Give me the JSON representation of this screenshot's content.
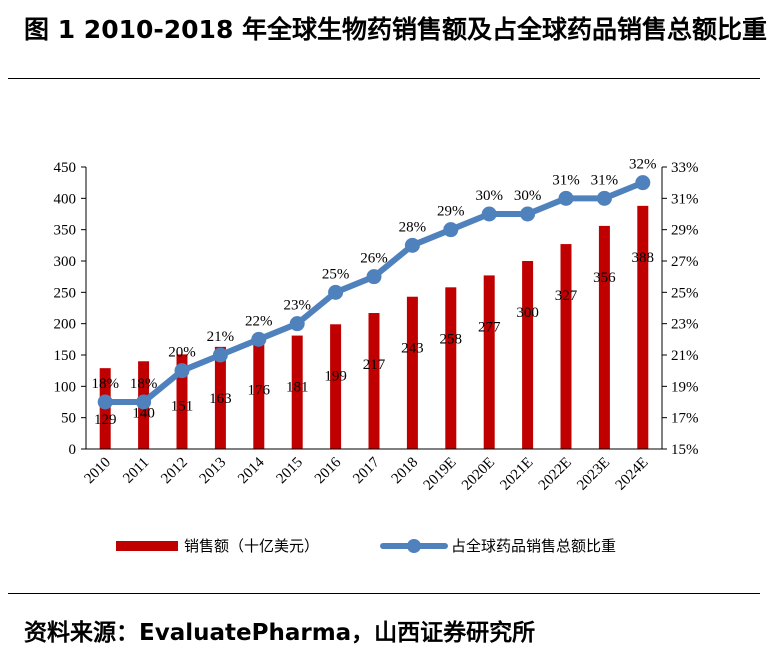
{
  "page": {
    "title": "图 1 2010-2018 年全球生物药销售额及占全球药品销售总额比重",
    "source": "资料来源：EvaluatePharma，山西证券研究所"
  },
  "colors": {
    "bar": "#c00000",
    "line": "#4f81bd"
  },
  "chart_data": {
    "type": "bar+line",
    "categories": [
      "2010",
      "2011",
      "2012",
      "2013",
      "2014",
      "2015",
      "2016",
      "2017",
      "2018",
      "2019E",
      "2020E",
      "2021E",
      "2022E",
      "2023E",
      "2024E"
    ],
    "series": [
      {
        "name": "销售额（十亿美元）",
        "type": "bar",
        "axis": "left",
        "values": [
          129,
          140,
          151,
          163,
          176,
          181,
          199,
          217,
          243,
          258,
          277,
          300,
          327,
          356,
          388
        ],
        "labels": [
          "129",
          "140",
          "151",
          "163",
          "176",
          "181",
          "199",
          "217",
          "243",
          "258",
          "277",
          "300",
          "327",
          "356",
          "388"
        ]
      },
      {
        "name": "占全球药品销售总额比重",
        "type": "line",
        "axis": "right",
        "values": [
          18,
          18,
          20,
          21,
          22,
          23,
          25,
          26,
          28,
          29,
          30,
          30,
          31,
          31,
          32
        ],
        "labels": [
          "18%",
          "18%",
          "20%",
          "21%",
          "22%",
          "23%",
          "25%",
          "26%",
          "28%",
          "29%",
          "30%",
          "30%",
          "31%",
          "31%",
          "32%"
        ]
      }
    ],
    "y_left": {
      "range": [
        0,
        450
      ],
      "ticks": [
        "0",
        "50",
        "100",
        "150",
        "200",
        "250",
        "300",
        "350",
        "400",
        "450"
      ],
      "tick_values": [
        0,
        50,
        100,
        150,
        200,
        250,
        300,
        350,
        400,
        450
      ]
    },
    "y_right": {
      "range": [
        15,
        33
      ],
      "ticks": [
        "15%",
        "17%",
        "19%",
        "21%",
        "23%",
        "25%",
        "27%",
        "29%",
        "31%",
        "33%"
      ],
      "tick_values": [
        15,
        17,
        19,
        21,
        23,
        25,
        27,
        29,
        31,
        33
      ]
    },
    "grid": false,
    "legend": "bottom"
  }
}
